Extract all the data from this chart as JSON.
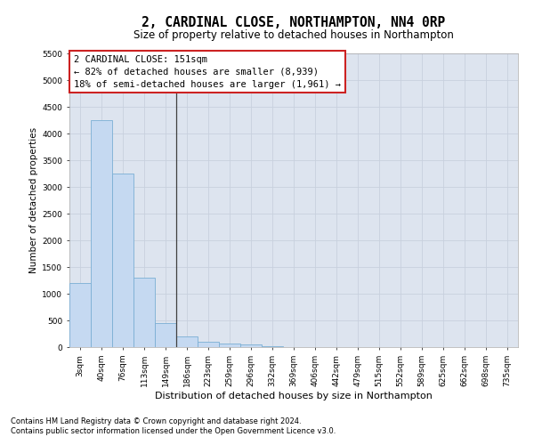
{
  "title": "2, CARDINAL CLOSE, NORTHAMPTON, NN4 0RP",
  "subtitle": "Size of property relative to detached houses in Northampton",
  "xlabel": "Distribution of detached houses by size in Northampton",
  "ylabel": "Number of detached properties",
  "footnote1": "Contains HM Land Registry data © Crown copyright and database right 2024.",
  "footnote2": "Contains public sector information licensed under the Open Government Licence v3.0.",
  "annotation_title": "2 CARDINAL CLOSE: 151sqm",
  "annotation_line1": "← 82% of detached houses are smaller (8,939)",
  "annotation_line2": "18% of semi-detached houses are larger (1,961) →",
  "bar_labels": [
    "3sqm",
    "40sqm",
    "76sqm",
    "113sqm",
    "149sqm",
    "186sqm",
    "223sqm",
    "259sqm",
    "296sqm",
    "332sqm",
    "369sqm",
    "406sqm",
    "442sqm",
    "479sqm",
    "515sqm",
    "552sqm",
    "589sqm",
    "625sqm",
    "662sqm",
    "698sqm",
    "735sqm"
  ],
  "bar_values": [
    1200,
    4250,
    3250,
    1300,
    450,
    200,
    100,
    75,
    50,
    10,
    5,
    0,
    0,
    0,
    0,
    0,
    0,
    0,
    0,
    0,
    0
  ],
  "bar_color": "#c5d9f1",
  "bar_edge_color": "#7bafd4",
  "vline_color": "#404040",
  "vline_x": 4.48,
  "ylim_max": 5500,
  "yticks": [
    0,
    500,
    1000,
    1500,
    2000,
    2500,
    3000,
    3500,
    4000,
    4500,
    5000,
    5500
  ],
  "grid_color": "#c8d0de",
  "plot_bg_color": "#dde4ef",
  "annotation_box_bg": "#ffffff",
  "annotation_box_edge": "#cc2222",
  "title_fontsize": 10.5,
  "subtitle_fontsize": 8.5,
  "ylabel_fontsize": 7.5,
  "xlabel_fontsize": 8,
  "tick_fontsize": 6.5,
  "annot_fontsize": 7.5
}
